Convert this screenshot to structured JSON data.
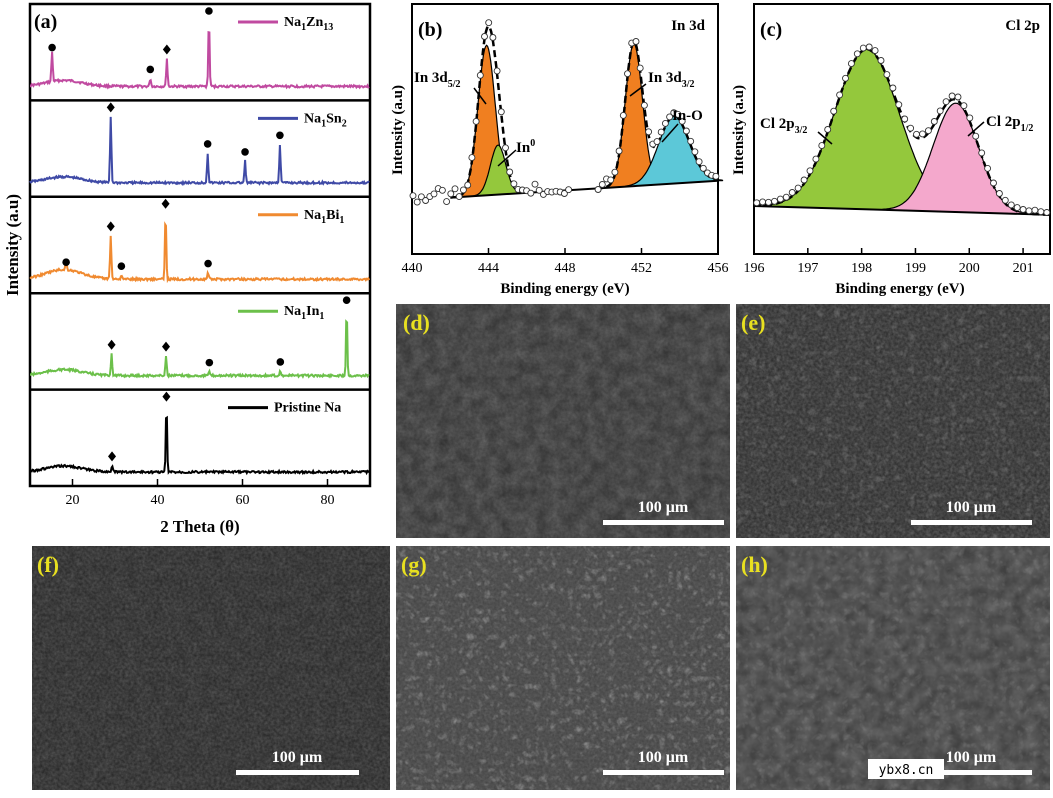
{
  "figure": {
    "watermark": "ybx8.cn"
  },
  "panel_a": {
    "label": "(a)",
    "chart_data": {
      "type": "line",
      "title": "",
      "xlabel": "2 Theta (θ)",
      "ylabel": "Intensity (a.u)",
      "xlim": [
        10,
        90
      ],
      "xticks": [
        "20",
        "40",
        "60",
        "80"
      ],
      "xtick_values": [
        20,
        40,
        60,
        80
      ],
      "series": [
        {
          "name": "Na1Zn13",
          "legend_main": "Na",
          "legend_sub1": "1",
          "legend_mid": "Zn",
          "legend_sub2": "13",
          "color": "#c04aa0",
          "peaks": [
            {
              "x": 15.2,
              "h": 0.45,
              "marker": "circle"
            },
            {
              "x": 38.3,
              "h": 0.12,
              "marker": "circle"
            },
            {
              "x": 42.2,
              "h": 0.42,
              "marker": "diamond"
            },
            {
              "x": 52.1,
              "h": 1.0,
              "marker": "circle"
            }
          ]
        },
        {
          "name": "Na1Sn2",
          "legend_main": "Na",
          "legend_sub1": "1",
          "legend_mid": "Sn",
          "legend_sub2": "2",
          "color": "#3f4aa6",
          "peaks": [
            {
              "x": 29.0,
              "h": 1.0,
              "marker": "diamond"
            },
            {
              "x": 51.8,
              "h": 0.45,
              "marker": "circle"
            },
            {
              "x": 60.6,
              "h": 0.33,
              "marker": "circle"
            },
            {
              "x": 68.8,
              "h": 0.58,
              "marker": "circle"
            }
          ]
        },
        {
          "name": "Na1Bi1",
          "legend_main": "Na",
          "legend_sub1": "1",
          "legend_mid": "Bi",
          "legend_sub2": "1",
          "color": "#f08a30",
          "peaks": [
            {
              "x": 18.5,
              "h": 0.12,
              "marker": "circle"
            },
            {
              "x": 29.0,
              "h": 0.66,
              "marker": "diamond"
            },
            {
              "x": 31.5,
              "h": 0.06,
              "marker": "circle"
            },
            {
              "x": 41.9,
              "h": 1.0,
              "marker": "diamond"
            },
            {
              "x": 51.9,
              "h": 0.1,
              "marker": "circle"
            }
          ]
        },
        {
          "name": "Na1In1",
          "legend_main": "Na",
          "legend_sub1": "1",
          "legend_mid": "In",
          "legend_sub2": "1",
          "color": "#6cc04a",
          "peaks": [
            {
              "x": 29.2,
              "h": 0.33,
              "marker": "diamond"
            },
            {
              "x": 42.0,
              "h": 0.3,
              "marker": "diamond"
            },
            {
              "x": 52.2,
              "h": 0.06,
              "marker": "circle"
            },
            {
              "x": 68.9,
              "h": 0.07,
              "marker": "circle"
            },
            {
              "x": 84.5,
              "h": 1.0,
              "marker": "circle"
            }
          ]
        },
        {
          "name": "Pristine Na",
          "legend_main": "Pristine Na",
          "legend_sub1": "",
          "legend_mid": "",
          "legend_sub2": "",
          "color": "#000000",
          "peaks": [
            {
              "x": 29.3,
              "h": 0.1,
              "marker": "diamond"
            },
            {
              "x": 42.1,
              "h": 1.0,
              "marker": "diamond"
            }
          ]
        }
      ]
    }
  },
  "panel_b": {
    "label": "(b)",
    "tag": "In 3d",
    "chart_data": {
      "type": "line",
      "xlabel": "Binding energy (eV)",
      "ylabel": "Intensity (a.u)",
      "xlim": [
        440,
        456
      ],
      "xticks": [
        "440",
        "444",
        "448",
        "452",
        "456"
      ],
      "xtick_values": [
        440,
        444,
        448,
        452,
        456
      ],
      "components": [
        {
          "name": "In 3d5/2",
          "center": 443.9,
          "sigma": 0.45,
          "amp": 1.0,
          "color": "#f07f20"
        },
        {
          "name": "In0",
          "center": 444.5,
          "sigma": 0.4,
          "amp": 0.33,
          "color": "#94c83c"
        },
        {
          "name": "In 3d3/2",
          "center": 451.6,
          "sigma": 0.45,
          "amp": 0.95,
          "color": "#f07f20"
        },
        {
          "name": "In-O",
          "center": 453.7,
          "sigma": 0.8,
          "amp": 0.45,
          "color": "#5cc8d8"
        }
      ],
      "annotations": {
        "a1_main": "In 3d",
        "a1_sub": "5/2",
        "a2_main": "In",
        "a2_sup": "0",
        "a3_main": "In 3d",
        "a3_sub": "3/2",
        "a4": "In-O"
      }
    }
  },
  "panel_c": {
    "label": "(c)",
    "tag": "Cl 2p",
    "chart_data": {
      "type": "line",
      "xlabel": "Binding energy (eV)",
      "ylabel": "Intensity (a.u)",
      "xlim": [
        196,
        201.5
      ],
      "xticks": [
        "196",
        "197",
        "198",
        "199",
        "200",
        "201"
      ],
      "xtick_values": [
        196,
        197,
        198,
        199,
        200,
        201
      ],
      "components": [
        {
          "name": "Cl 2p3/2",
          "center": 198.1,
          "sigma": 0.6,
          "amp": 1.0,
          "color": "#94c83c"
        },
        {
          "name": "Cl 2p1/2",
          "center": 199.75,
          "sigma": 0.42,
          "amp": 0.68,
          "color": "#f4a8cc"
        }
      ],
      "annotations": {
        "c1_main": "Cl 2p",
        "c1_sub": "3/2",
        "c2_main": "Cl 2p",
        "c2_sub": "1/2"
      }
    }
  },
  "sem": {
    "d": {
      "label": "(d)",
      "scale": "100 μm"
    },
    "e": {
      "label": "(e)",
      "scale": "100 μm"
    },
    "f": {
      "label": "(f)",
      "scale": "100 μm"
    },
    "g": {
      "label": "(g)",
      "scale": "100 μm"
    },
    "h": {
      "label": "(h)",
      "scale": "100 μm"
    }
  }
}
